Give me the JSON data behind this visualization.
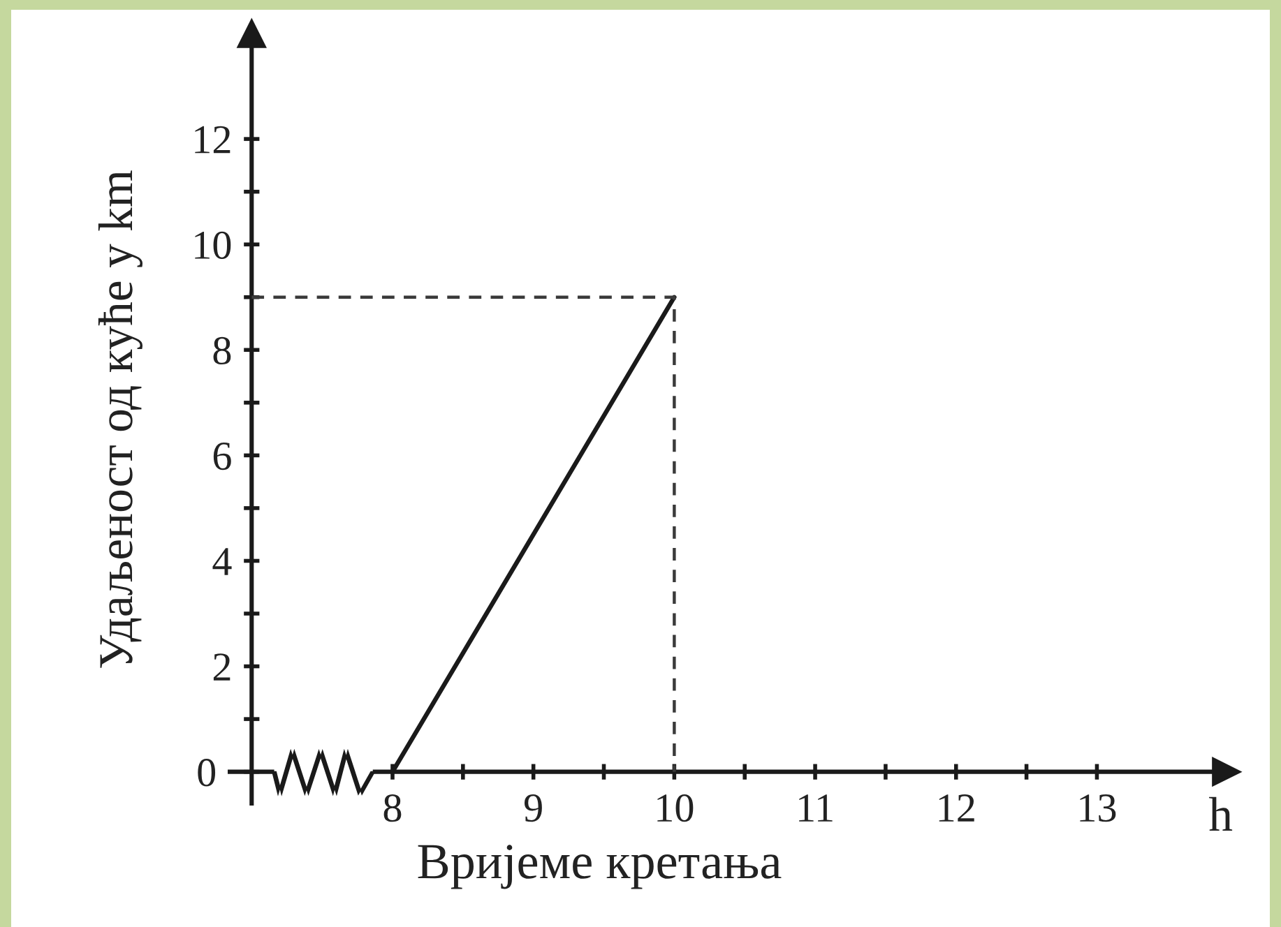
{
  "chart_data": {
    "type": "line",
    "xlabel": "Вријеме кретања",
    "ylabel": "Удаљеност од куће у km",
    "annotations": [
      "h"
    ],
    "series": [
      {
        "x": [
          8,
          10
        ],
        "values": [
          0,
          9
        ],
        "color": "#1a1a1a",
        "line_style": "solid"
      },
      {
        "x": [
          7,
          10,
          10
        ],
        "values": [
          9,
          9,
          0
        ],
        "color": "#3a3a3a",
        "line_style": "dashed"
      }
    ],
    "xlim": [
      6.83,
      13.92
    ],
    "ylim": [
      -0.64,
      14.0
    ],
    "xticks": [
      8,
      {
        "value": 8.5,
        "label": null
      },
      9,
      {
        "value": 9.5,
        "label": null
      },
      10,
      {
        "value": 10.5,
        "label": null
      },
      11,
      {
        "value": 11.5,
        "label": null
      },
      12,
      {
        "value": 12.5,
        "label": null
      },
      13
    ],
    "yticks": [
      0,
      {
        "value": 1,
        "label": null
      },
      2,
      {
        "value": 3,
        "label": null
      },
      4,
      {
        "value": 5,
        "label": null
      },
      6,
      {
        "value": 7,
        "label": null
      },
      8,
      {
        "value": 9,
        "label": null
      },
      10,
      {
        "value": 11,
        "label": null
      },
      12
    ],
    "grid": false,
    "legend": false
  }
}
